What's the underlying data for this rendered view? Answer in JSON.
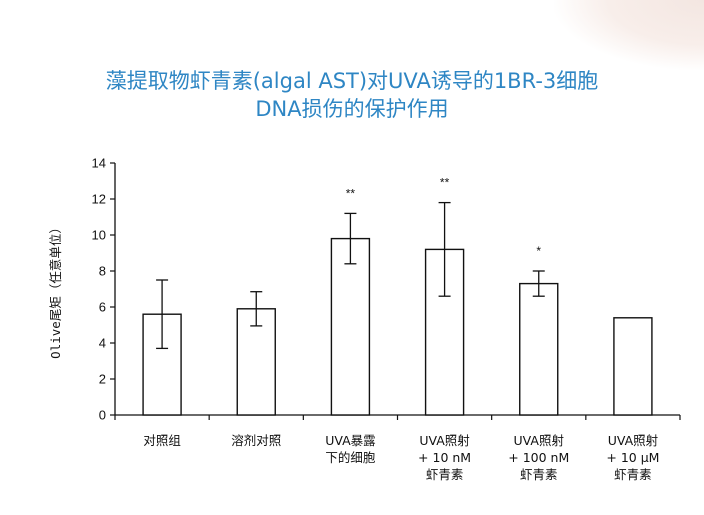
{
  "slide": {
    "title_line1": "藻提取物虾青素(algal AST)对UVA诱导的1BR-3细胞",
    "title_line2": "DNA损伤的保护作用"
  },
  "chart_data": {
    "type": "bar",
    "ylabel": "Olive尾矩（任意单位）",
    "xlabel": "",
    "ylim": [
      0,
      14
    ],
    "yticks": [
      0,
      2,
      4,
      6,
      8,
      10,
      12,
      14
    ],
    "grid": false,
    "categories": [
      [
        "对照组"
      ],
      [
        "溶剂对照"
      ],
      [
        "UVA暴露",
        "下的细胞"
      ],
      [
        "UVA照射",
        "+ 10 nM",
        "虾青素"
      ],
      [
        "UVA照射",
        "+ 100 nM",
        "虾青素"
      ],
      [
        "UVA照射",
        "+ 10 μM",
        "虾青素"
      ]
    ],
    "values": [
      5.6,
      5.9,
      9.8,
      9.2,
      7.3,
      5.4
    ],
    "errors": [
      1.9,
      0.95,
      1.4,
      2.6,
      0.7,
      null
    ],
    "significance": [
      "",
      "",
      "**",
      "**",
      "*",
      ""
    ],
    "bar_fill": "#ffffff",
    "bar_stroke": "#111111"
  }
}
